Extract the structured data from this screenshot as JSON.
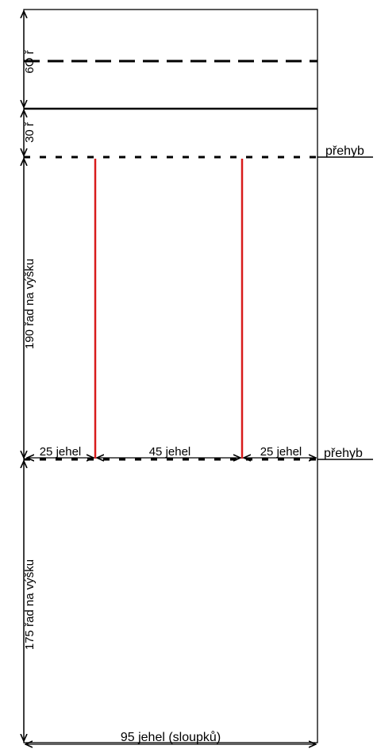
{
  "labels": {
    "rows_60": "6O ř",
    "rows_30": "30 ř",
    "fold_top": "přehyb",
    "rows_190": "190 řad na výšku",
    "stitches_left": "25 jehel",
    "stitches_middle": "45 jehel",
    "stitches_right": "25 jehel",
    "fold_bottom": "přehyb",
    "rows_175": "175 řad na výšku",
    "width_total": "95 jehel (sloupků)"
  },
  "colors": {
    "line": "#000000",
    "seam": "#d81b1b"
  }
}
